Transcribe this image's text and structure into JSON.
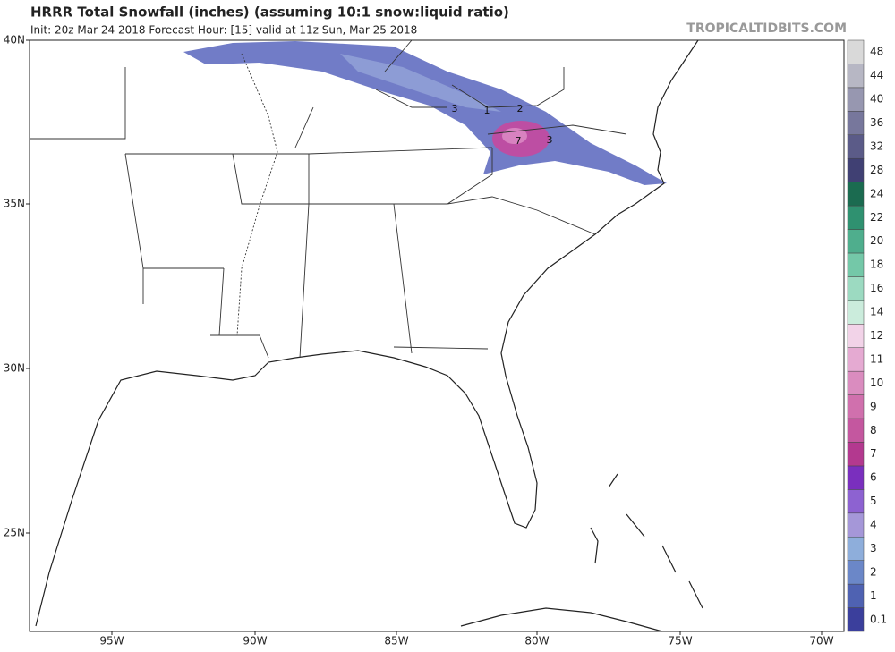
{
  "header": {
    "title": "HRRR Total Snowfall (inches) (assuming 10:1 snow:liquid ratio)",
    "subtitle": "Init: 20z Mar 24 2018   Forecast Hour: [15]   valid at 11z Sun, Mar 25 2018",
    "watermark": "TROPICALTIDBITS.COM"
  },
  "axes": {
    "lon_labels": [
      "95W",
      "90W",
      "85W",
      "80W",
      "75W",
      "70W"
    ],
    "lat_labels": [
      "40N",
      "35N",
      "30N",
      "25N"
    ]
  },
  "colorbar": [
    {
      "label": 0.1,
      "color": "#3b3f9c"
    },
    {
      "label": 1,
      "color": "#4f62b2"
    },
    {
      "label": 2,
      "color": "#6b87c8"
    },
    {
      "label": 3,
      "color": "#8eaedb"
    },
    {
      "label": 4,
      "color": "#a597d8"
    },
    {
      "label": 5,
      "color": "#8d62d1"
    },
    {
      "label": 6,
      "color": "#7a2fbe"
    },
    {
      "label": 7,
      "color": "#b3398f"
    },
    {
      "label": 8,
      "color": "#c4579f"
    },
    {
      "label": 9,
      "color": "#d070ad"
    },
    {
      "label": 10,
      "color": "#da8cbf"
    },
    {
      "label": 11,
      "color": "#e5aad2"
    },
    {
      "label": 12,
      "color": "#f2d3e8"
    },
    {
      "label": 14,
      "color": "#cbecdc"
    },
    {
      "label": 16,
      "color": "#9cdac1"
    },
    {
      "label": 18,
      "color": "#74c8a8"
    },
    {
      "label": 20,
      "color": "#4fae8d"
    },
    {
      "label": 22,
      "color": "#2f9170"
    },
    {
      "label": 24,
      "color": "#1b6b50"
    },
    {
      "label": 28,
      "color": "#404073"
    },
    {
      "label": 32,
      "color": "#5b5b88"
    },
    {
      "label": 36,
      "color": "#77779c"
    },
    {
      "label": 40,
      "color": "#9797b0"
    },
    {
      "label": 44,
      "color": "#b7b7c4"
    },
    {
      "label": 48,
      "color": "#d9d9d9"
    }
  ],
  "contour_labels": [
    3,
    1,
    2,
    7,
    3
  ]
}
